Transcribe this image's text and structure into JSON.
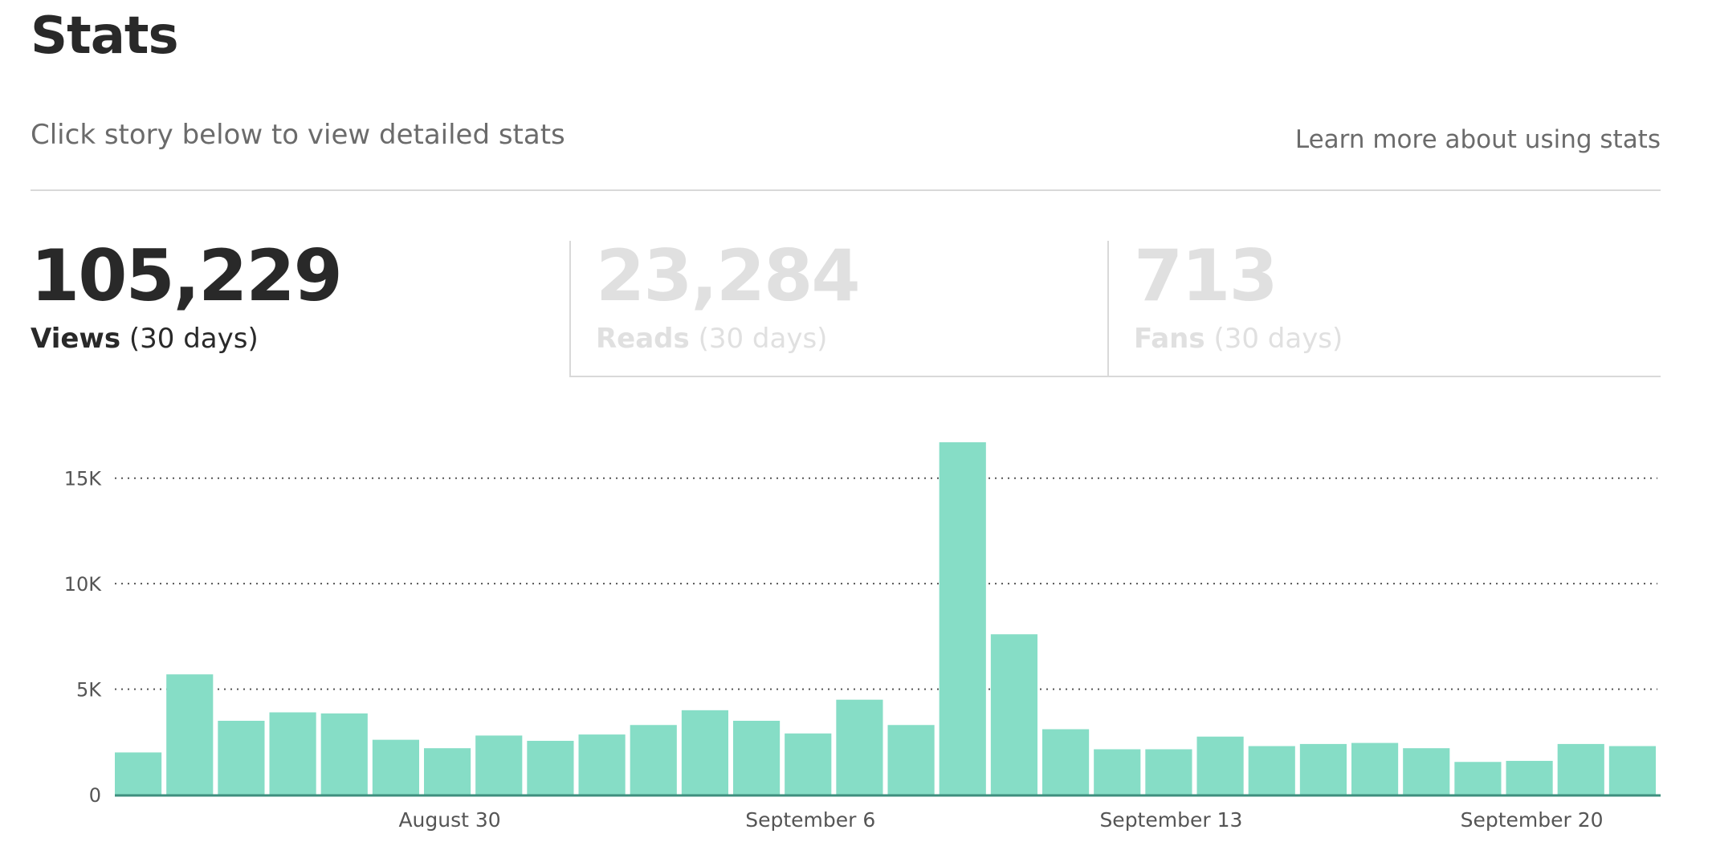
{
  "page": {
    "title": "Stats",
    "subtitle": "Click story below to view detailed stats",
    "learn_more": "Learn more about using stats"
  },
  "metrics": [
    {
      "value": "105,229",
      "name": "Views",
      "period": "(30 days)",
      "active": true
    },
    {
      "value": "23,284",
      "name": "Reads",
      "period": "(30 days)",
      "active": false
    },
    {
      "value": "713",
      "name": "Fans",
      "period": "(30 days)",
      "active": false
    }
  ],
  "colors": {
    "bar": "#86ddc6",
    "axis": "#3e8f7e",
    "active_text": "#292929",
    "inactive_text": "#e0e0e0"
  },
  "chart_data": {
    "type": "bar",
    "series": [
      {
        "values": [
          2000,
          5700,
          3500,
          3900,
          3850,
          2600,
          2200,
          2800,
          2550,
          2850,
          3300,
          4000,
          3500,
          2900,
          4500,
          3300,
          16700,
          7600,
          3100,
          2150,
          2150,
          2750,
          2300,
          2400,
          2450,
          2200,
          1550,
          1600,
          2400,
          2300
        ]
      }
    ],
    "ylim": [
      0,
      16700
    ],
    "yticks": [
      {
        "value": 0,
        "label": "0"
      },
      {
        "value": 5000,
        "label": "5K"
      },
      {
        "value": 10000,
        "label": "10K"
      },
      {
        "value": 15000,
        "label": "15K"
      }
    ],
    "xticks": [
      {
        "index": 6.5,
        "label": "August 30"
      },
      {
        "index": 13.5,
        "label": "September 6"
      },
      {
        "index": 20.5,
        "label": "September 13"
      },
      {
        "index": 27.5,
        "label": "September 20"
      }
    ],
    "grid": "dotted horizontal",
    "xlabel": "",
    "ylabel": ""
  }
}
